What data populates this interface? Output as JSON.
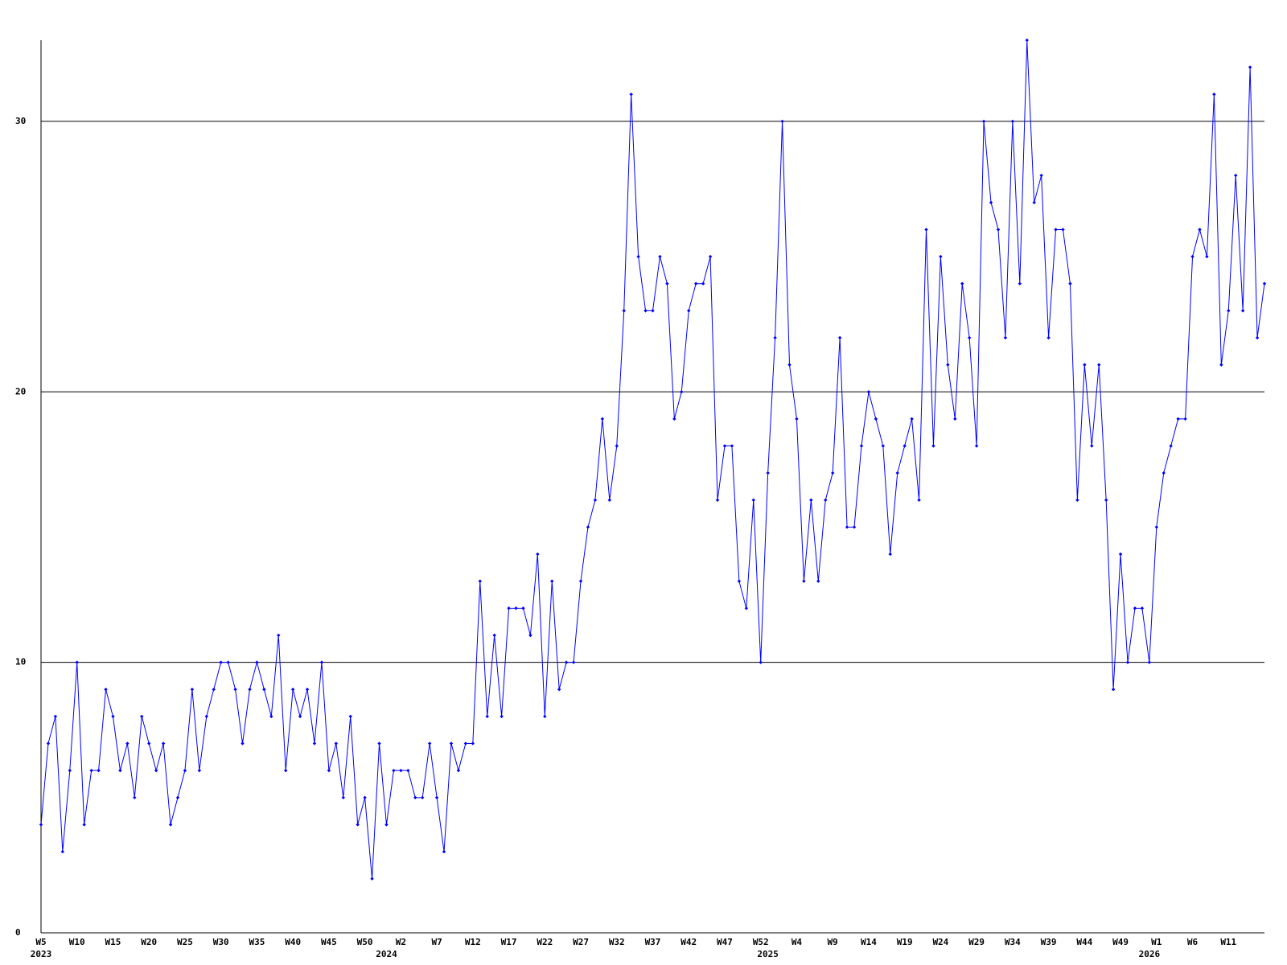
{
  "chart_data": {
    "type": "line",
    "categories": [
      "W5",
      null,
      null,
      null,
      null,
      "W10",
      null,
      null,
      null,
      null,
      "W15",
      null,
      null,
      null,
      null,
      "W20",
      null,
      null,
      null,
      null,
      "W25",
      null,
      null,
      null,
      null,
      "W30",
      null,
      null,
      null,
      null,
      "W35",
      null,
      null,
      null,
      null,
      "W40",
      null,
      null,
      null,
      null,
      "W45",
      null,
      null,
      null,
      null,
      "W50",
      null,
      null,
      null,
      null,
      "W2",
      null,
      null,
      null,
      null,
      "W7",
      null,
      null,
      null,
      null,
      "W12",
      null,
      null,
      null,
      null,
      "W17",
      null,
      null,
      null,
      null,
      "W22",
      null,
      null,
      null,
      null,
      "W27",
      null,
      null,
      null,
      null,
      "W32",
      null,
      null,
      null,
      null,
      "W37",
      null,
      null,
      null,
      null,
      "W42",
      null,
      null,
      null,
      null,
      "W47",
      null,
      null,
      null,
      null,
      "W52",
      null,
      null,
      null,
      null,
      "W4",
      null,
      null,
      null,
      null,
      "W9",
      null,
      null,
      null,
      null,
      "W14",
      null,
      null,
      null,
      null,
      "W19",
      null,
      null,
      null,
      null,
      "W24",
      null,
      null,
      null,
      null,
      "W29",
      null,
      null,
      null,
      null,
      "W34",
      null,
      null,
      null,
      null,
      "W39",
      null,
      null,
      null,
      null,
      "W44",
      null,
      null,
      null,
      null,
      "W49",
      null,
      null,
      null,
      null,
      "W1",
      null,
      null,
      null,
      null,
      "W6",
      null,
      null,
      null,
      null,
      "W11",
      null,
      null,
      null,
      null,
      null
    ],
    "years": [
      {
        "label": "2023",
        "index": 0
      },
      {
        "label": "2024",
        "index": 48
      },
      {
        "label": "2025",
        "index": 101
      },
      {
        "label": "2026",
        "index": 154
      }
    ],
    "series": [
      {
        "color": "#0000ff",
        "values": [
          4,
          7,
          8,
          3,
          6,
          10,
          4,
          6,
          6,
          9,
          8,
          6,
          7,
          5,
          8,
          7,
          6,
          7,
          4,
          5,
          6,
          9,
          6,
          8,
          9,
          10,
          10,
          9,
          7,
          9,
          10,
          9,
          8,
          11,
          6,
          9,
          8,
          9,
          7,
          10,
          6,
          7,
          5,
          8,
          4,
          5,
          2,
          7,
          4,
          6,
          6,
          6,
          5,
          5,
          7,
          5,
          3,
          7,
          6,
          7,
          7,
          13,
          8,
          11,
          8,
          12,
          12,
          12,
          11,
          14,
          8,
          13,
          9,
          10,
          10,
          13,
          15,
          16,
          19,
          16,
          18,
          23,
          31,
          25,
          23,
          23,
          25,
          24,
          19,
          20,
          23,
          24,
          24,
          25,
          16,
          18,
          18,
          13,
          12,
          16,
          10,
          17,
          22,
          30,
          21,
          19,
          13,
          16,
          13,
          16,
          17,
          22,
          15,
          15,
          18,
          20,
          19,
          18,
          14,
          17,
          18,
          19,
          16,
          26,
          18,
          25,
          21,
          19,
          24,
          22,
          18,
          30,
          27,
          26,
          22,
          30,
          24,
          33,
          27,
          28,
          22,
          26,
          26,
          24,
          16,
          21,
          18,
          21,
          16,
          9,
          14,
          10,
          12,
          12,
          10,
          15,
          17,
          18,
          19,
          19,
          25,
          26,
          25,
          31,
          21,
          23,
          28,
          23,
          32,
          22,
          24
        ]
      }
    ],
    "ylim": [
      0,
      33
    ],
    "yticks": [
      0,
      10,
      20,
      30
    ],
    "grid": true
  }
}
